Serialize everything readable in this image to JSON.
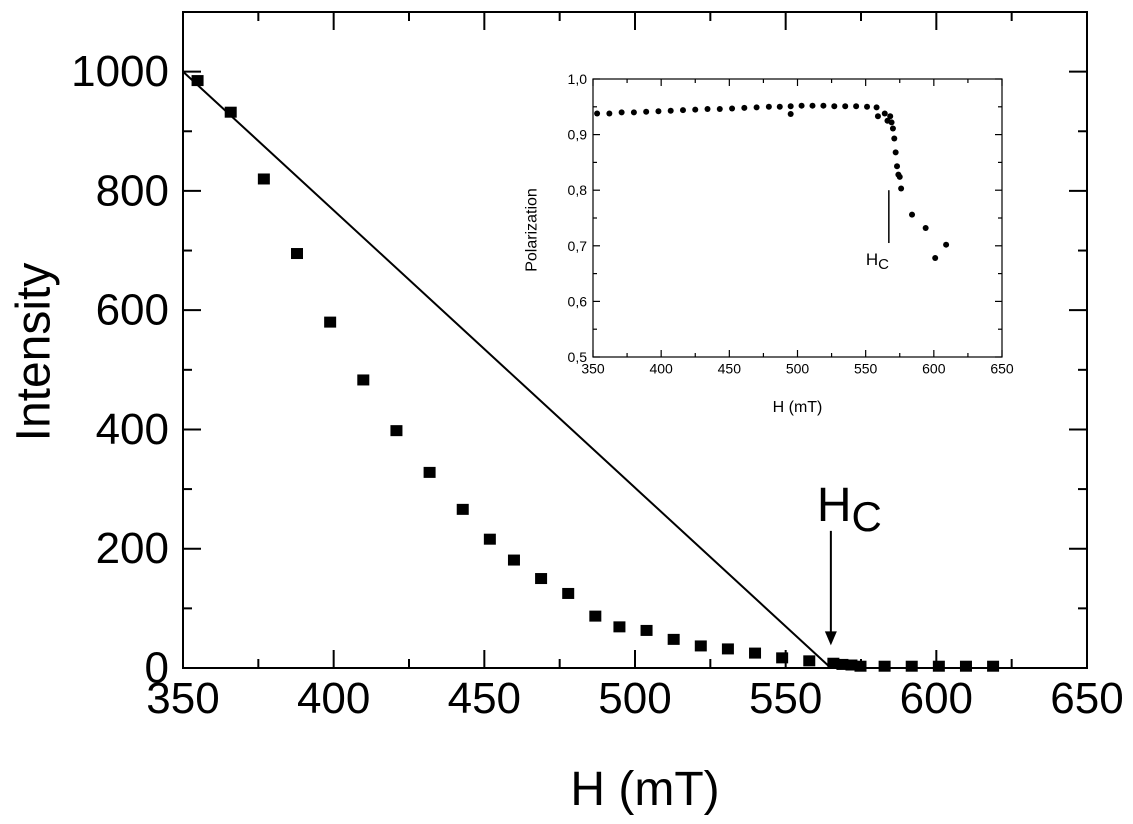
{
  "chart_data": [
    {
      "type": "scatter",
      "title": "",
      "xlabel": "H (mT)",
      "ylabel": "Intensity",
      "xlim": [
        350,
        650
      ],
      "ylim": [
        0,
        1100
      ],
      "xticks": [
        350,
        400,
        450,
        500,
        550,
        600,
        650
      ],
      "yticks": [
        0,
        200,
        400,
        600,
        800,
        1000
      ],
      "xtick_labels": [
        "350",
        "400",
        "450",
        "500",
        "550",
        "600",
        "650"
      ],
      "ytick_labels": [
        "0",
        "200",
        "400",
        "600",
        "800",
        "1000"
      ],
      "grid": false,
      "series": [
        {
          "marker": "square",
          "color": "#000000",
          "x": [
            355,
            366,
            377,
            388,
            399,
            410,
            421,
            432,
            443,
            452,
            460,
            469,
            478,
            487,
            495,
            504,
            513,
            522,
            531,
            540,
            549,
            558,
            566,
            569,
            572,
            575,
            583,
            592,
            601,
            610,
            619
          ],
          "y": [
            985,
            932,
            820,
            695,
            580,
            483,
            398,
            328,
            266,
            216,
            181,
            150,
            125,
            87,
            69,
            63,
            48,
            37,
            32,
            25,
            17,
            12,
            8,
            6,
            5,
            3,
            3,
            3,
            3,
            3,
            3
          ]
        },
        {
          "style": "line",
          "color": "#000000",
          "x": [
            350,
            565
          ],
          "y": [
            1000,
            0
          ]
        }
      ],
      "annotations": [
        {
          "text_main": "H",
          "text_sub": "C",
          "arrow_x": 565,
          "arrow_from_y": 230,
          "arrow_to_y": 38
        }
      ]
    },
    {
      "type": "scatter",
      "title": "",
      "xlabel": "H (mT)",
      "ylabel": "Polarization",
      "xlim": [
        350,
        650
      ],
      "ylim": [
        0.5,
        1.0
      ],
      "xticks": [
        350,
        400,
        450,
        500,
        550,
        600,
        650
      ],
      "yticks": [
        0.5,
        0.6,
        0.7,
        0.8,
        0.9,
        1.0
      ],
      "xtick_labels": [
        "350",
        "400",
        "450",
        "500",
        "550",
        "600",
        "650"
      ],
      "ytick_labels": [
        "0,5",
        "0,6",
        "0,7",
        "0,8",
        "0,9",
        "1,0"
      ],
      "grid": false,
      "series": [
        {
          "marker": "circle",
          "color": "#000000",
          "x": [
            353,
            362,
            371,
            380,
            389,
            398,
            407,
            416,
            425,
            434,
            443,
            452,
            461,
            470,
            479,
            487,
            495,
            495,
            503,
            511,
            519,
            527,
            535,
            543,
            551,
            558,
            559,
            564,
            566,
            568,
            569,
            570,
            571,
            572,
            573,
            574,
            575,
            576,
            584,
            594,
            601,
            609
          ],
          "y": [
            0.938,
            0.938,
            0.94,
            0.94,
            0.941,
            0.942,
            0.943,
            0.944,
            0.945,
            0.946,
            0.946,
            0.947,
            0.948,
            0.949,
            0.95,
            0.95,
            0.951,
            0.937,
            0.952,
            0.952,
            0.952,
            0.951,
            0.951,
            0.951,
            0.95,
            0.949,
            0.933,
            0.938,
            0.925,
            0.933,
            0.922,
            0.911,
            0.893,
            0.868,
            0.843,
            0.828,
            0.824,
            0.803,
            0.756,
            0.732,
            0.678,
            0.702
          ]
        }
      ],
      "annotations": [
        {
          "text_main": "H",
          "text_sub": "C",
          "line_x": 567,
          "line_from_y": 0.8,
          "line_to_y": 0.705
        }
      ]
    }
  ]
}
